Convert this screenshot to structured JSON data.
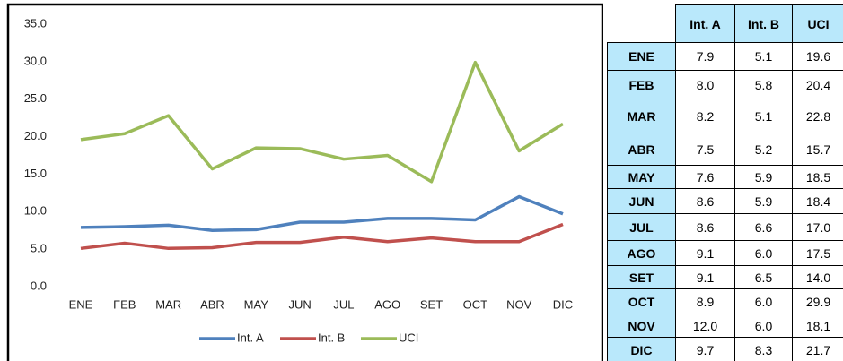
{
  "chart_data": {
    "type": "line",
    "categories": [
      "ENE",
      "FEB",
      "MAR",
      "ABR",
      "MAY",
      "JUN",
      "JUL",
      "AGO",
      "SET",
      "OCT",
      "NOV",
      "DIC"
    ],
    "series": [
      {
        "name": "Int. A",
        "color": "#4f81bd",
        "values": [
          7.9,
          8.0,
          8.2,
          7.5,
          7.6,
          8.6,
          8.6,
          9.1,
          9.1,
          8.9,
          12.0,
          9.7
        ],
        "value_labels": [
          "7.9",
          "8.0",
          "8.2",
          "7.5",
          "7.6",
          "8.6",
          "8.6",
          "9.1",
          "9.1",
          "8.9",
          "12.0",
          "9.7"
        ]
      },
      {
        "name": "Int. B",
        "color": "#c0504d",
        "values": [
          5.1,
          5.8,
          5.1,
          5.2,
          5.9,
          5.9,
          6.6,
          6.0,
          6.5,
          6.0,
          6.0,
          8.3
        ],
        "value_labels": [
          "5.1",
          "5.8",
          "5.1",
          "5.2",
          "5.9",
          "5.9",
          "6.6",
          "6.0",
          "6.5",
          "6.0",
          "6.0",
          "8.3"
        ]
      },
      {
        "name": "UCI",
        "color": "#9bbb59",
        "values": [
          19.6,
          20.4,
          22.8,
          15.7,
          18.5,
          18.4,
          17.0,
          17.5,
          14.0,
          29.9,
          18.1,
          21.7
        ],
        "value_labels": [
          "19.6",
          "20.4",
          "22.8",
          "15.7",
          "18.5",
          "18.4",
          "17.0",
          "17.5",
          "14.0",
          "29.9",
          "18.1",
          "21.7"
        ]
      }
    ],
    "ylim": [
      0,
      35
    ],
    "yticks": [
      {
        "value": 0,
        "label": "0.0"
      },
      {
        "value": 5,
        "label": "5.0"
      },
      {
        "value": 10,
        "label": "10.0"
      },
      {
        "value": 15,
        "label": "15.0"
      },
      {
        "value": 20,
        "label": "20.0"
      },
      {
        "value": 25,
        "label": "25.0"
      },
      {
        "value": 30,
        "label": "30.0"
      },
      {
        "value": 35,
        "label": "35.0"
      }
    ],
    "grid": false,
    "legend": "bottom"
  }
}
